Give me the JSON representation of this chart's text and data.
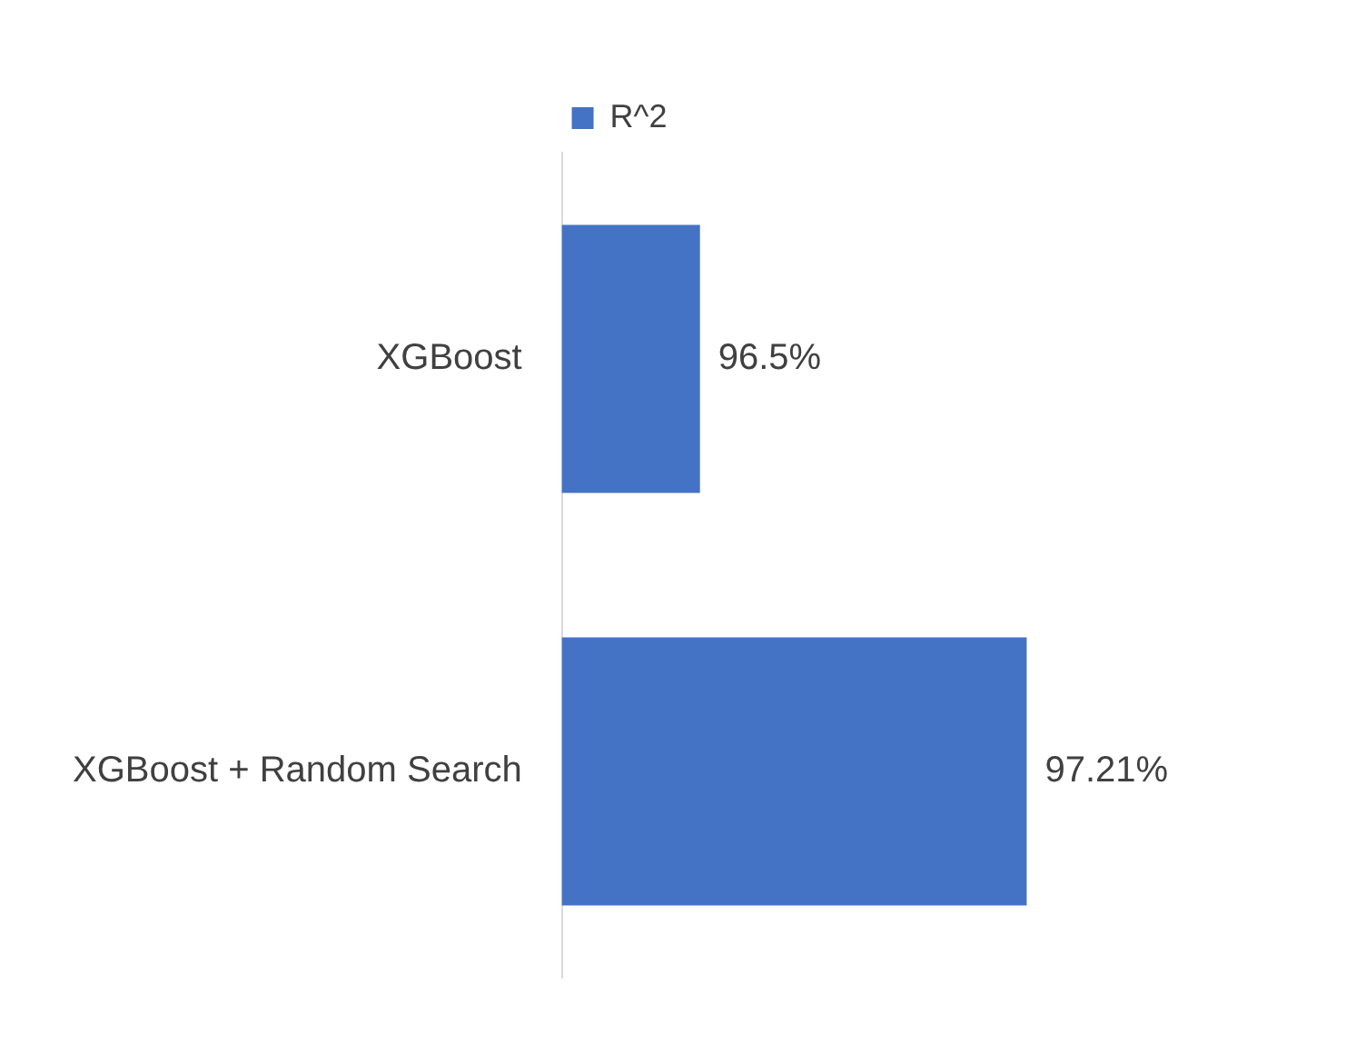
{
  "chart_data": {
    "type": "bar",
    "orientation": "horizontal",
    "categories": [
      "XGBoost",
      "XGBoost + Random Search"
    ],
    "series": [
      {
        "name": "R^2",
        "color": "#4472c4",
        "values": [
          96.5,
          97.21
        ],
        "value_labels": [
          "96.5%",
          "97.21%"
        ]
      }
    ],
    "tick_labels": "y",
    "grid": false,
    "legend": "top"
  }
}
